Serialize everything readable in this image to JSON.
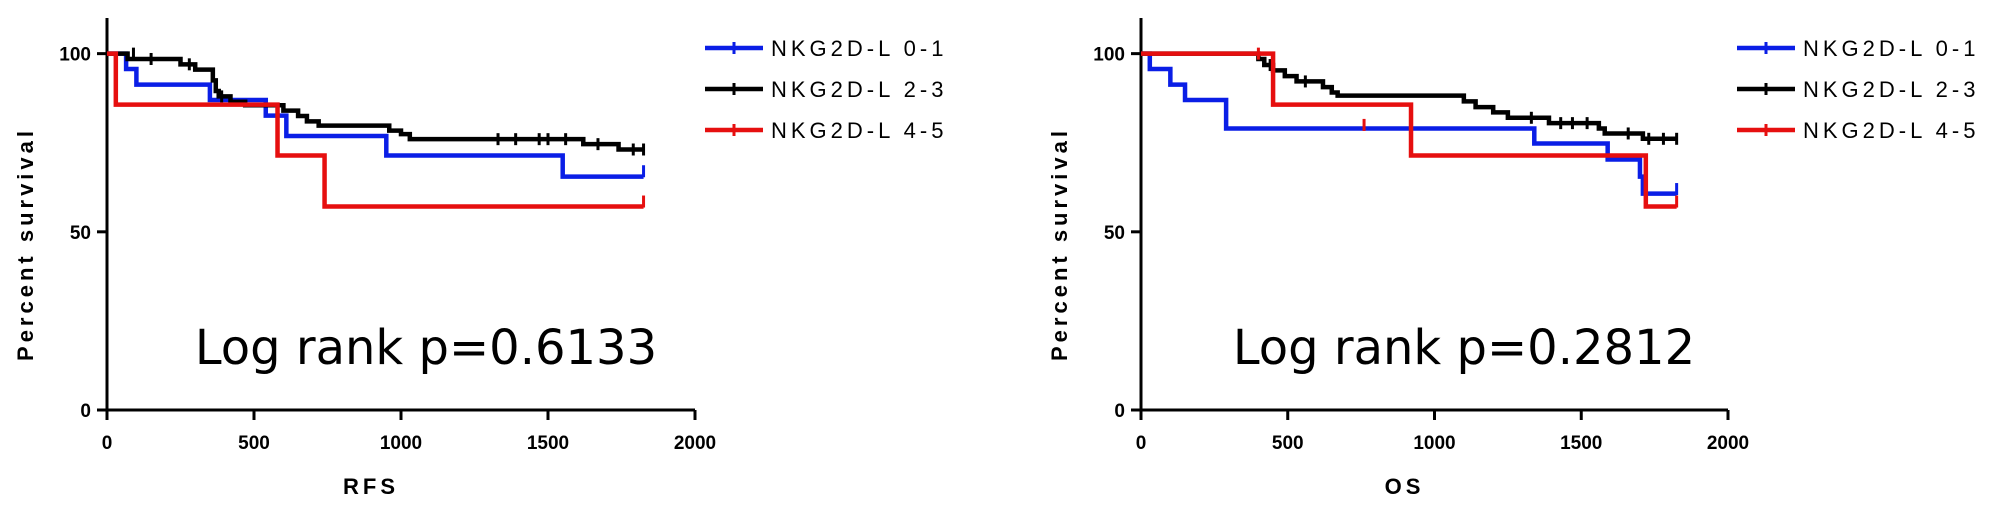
{
  "chart_data": [
    {
      "type": "line",
      "subtype": "kaplan-meier",
      "title": "",
      "xlabel": "RFS",
      "ylabel": "Percent survival",
      "xlim": [
        0,
        2000
      ],
      "ylim": [
        0,
        110
      ],
      "xticks": [
        0,
        500,
        1000,
        1500,
        2000
      ],
      "yticks": [
        0,
        50,
        100
      ],
      "annotation": "Log rank p=0.6133",
      "legend_position": "top-right",
      "series": [
        {
          "name": "NKG2D-L 0-1",
          "color": "#0a1ee6",
          "steps": [
            [
              0,
              100
            ],
            [
              65,
              95.7
            ],
            [
              100,
              91.3
            ],
            [
              350,
              87
            ],
            [
              540,
              82.6
            ],
            [
              610,
              76.9
            ],
            [
              950,
              71.4
            ],
            [
              1550,
              65.5
            ],
            [
              1825,
              65.5
            ]
          ],
          "censored": [
            [
              1825,
              67
            ]
          ]
        },
        {
          "name": "NKG2D-L 2-3",
          "color": "#000000",
          "steps": [
            [
              0,
              100
            ],
            [
              70,
              98.5
            ],
            [
              250,
              97
            ],
            [
              300,
              95.5
            ],
            [
              360,
              92.5
            ],
            [
              370,
              89.5
            ],
            [
              380,
              88
            ],
            [
              420,
              86.5
            ],
            [
              470,
              85.5
            ],
            [
              600,
              84
            ],
            [
              650,
              82.5
            ],
            [
              680,
              81
            ],
            [
              720,
              79.8
            ],
            [
              960,
              78.4
            ],
            [
              1000,
              77.4
            ],
            [
              1030,
              76
            ],
            [
              1620,
              74.6
            ],
            [
              1740,
              73.1
            ],
            [
              1825,
              73.1
            ]
          ],
          "censored": [
            [
              90,
              100
            ],
            [
              150,
              98.5
            ],
            [
              280,
              97
            ],
            [
              390,
              88
            ],
            [
              1330,
              76
            ],
            [
              1390,
              76
            ],
            [
              1470,
              76
            ],
            [
              1500,
              76
            ],
            [
              1560,
              76
            ],
            [
              1670,
              74.6
            ],
            [
              1790,
              73.1
            ],
            [
              1825,
              73.1
            ]
          ]
        },
        {
          "name": "NKG2D-L 4-5",
          "color": "#e60f0f",
          "steps": [
            [
              0,
              100
            ],
            [
              30,
              85.7
            ],
            [
              580,
              71.4
            ],
            [
              740,
              57.1
            ],
            [
              1825,
              57.1
            ]
          ],
          "censored": [
            [
              1825,
              58.5
            ]
          ]
        }
      ]
    },
    {
      "type": "line",
      "subtype": "kaplan-meier",
      "title": "",
      "xlabel": "OS",
      "ylabel": "Percent survival",
      "xlim": [
        0,
        2000
      ],
      "ylim": [
        0,
        110
      ],
      "xticks": [
        0,
        500,
        1000,
        1500,
        2000
      ],
      "yticks": [
        0,
        50,
        100
      ],
      "annotation": "Log rank p=0.2812",
      "legend_position": "top-right",
      "series": [
        {
          "name": "NKG2D-L 0-1",
          "color": "#0a1ee6",
          "steps": [
            [
              0,
              100
            ],
            [
              30,
              95.7
            ],
            [
              100,
              91.3
            ],
            [
              150,
              87
            ],
            [
              290,
              79
            ],
            [
              1340,
              74.8
            ],
            [
              1590,
              70.3
            ],
            [
              1700,
              65.5
            ],
            [
              1710,
              60.7
            ],
            [
              1825,
              60.7
            ]
          ],
          "censored": [
            [
              1825,
              62
            ]
          ]
        },
        {
          "name": "NKG2D-L 2-3",
          "color": "#000000",
          "steps": [
            [
              0,
              100
            ],
            [
              400,
              98.5
            ],
            [
              420,
              96.8
            ],
            [
              450,
              95.3
            ],
            [
              490,
              93.7
            ],
            [
              530,
              92.2
            ],
            [
              620,
              90.6
            ],
            [
              650,
              89.1
            ],
            [
              670,
              88.2
            ],
            [
              1100,
              86.6
            ],
            [
              1140,
              85
            ],
            [
              1200,
              83.5
            ],
            [
              1250,
              82
            ],
            [
              1390,
              80.5
            ],
            [
              1560,
              79
            ],
            [
              1580,
              77.6
            ],
            [
              1710,
              76.1
            ],
            [
              1825,
              76.1
            ]
          ],
          "censored": [
            [
              440,
              96.8
            ],
            [
              560,
              92.2
            ],
            [
              1330,
              82
            ],
            [
              1430,
              80.5
            ],
            [
              1470,
              80.5
            ],
            [
              1520,
              80.5
            ],
            [
              1660,
              77.6
            ],
            [
              1730,
              76.1
            ],
            [
              1780,
              76.1
            ],
            [
              1825,
              76.1
            ]
          ]
        },
        {
          "name": "NKG2D-L 4-5",
          "color": "#e60f0f",
          "steps": [
            [
              0,
              100
            ],
            [
              450,
              85.7
            ],
            [
              920,
              71.4
            ],
            [
              1720,
              57.1
            ],
            [
              1825,
              57.1
            ]
          ],
          "censored": [
            [
              400,
              100
            ],
            [
              760,
              80
            ],
            [
              1825,
              58.5
            ]
          ]
        }
      ]
    }
  ]
}
